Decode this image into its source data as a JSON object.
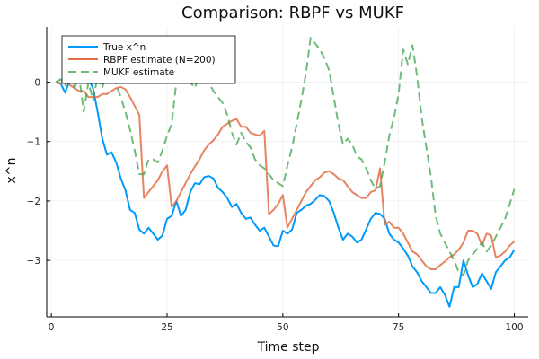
{
  "chart_data": {
    "type": "line",
    "title": "Comparison: RBPF vs MUKF",
    "xlabel": "Time step",
    "ylabel": "x^n",
    "xlim": [
      -1,
      103
    ],
    "ylim": [
      -3.95,
      0.93
    ],
    "xticks": [
      0,
      25,
      50,
      75,
      100
    ],
    "yticks": [
      0,
      -1,
      -2,
      -3
    ],
    "grid": true,
    "legend_position": "top-left",
    "x": [
      1,
      2,
      3,
      4,
      5,
      6,
      7,
      8,
      9,
      10,
      11,
      12,
      13,
      14,
      15,
      16,
      17,
      18,
      19,
      20,
      21,
      22,
      23,
      24,
      25,
      26,
      27,
      28,
      29,
      30,
      31,
      32,
      33,
      34,
      35,
      36,
      37,
      38,
      39,
      40,
      41,
      42,
      43,
      44,
      45,
      46,
      47,
      48,
      49,
      50,
      51,
      52,
      53,
      54,
      55,
      56,
      57,
      58,
      59,
      60,
      61,
      62,
      63,
      64,
      65,
      66,
      67,
      68,
      69,
      70,
      71,
      72,
      73,
      74,
      75,
      76,
      77,
      78,
      79,
      80,
      81,
      82,
      83,
      84,
      85,
      86,
      87,
      88,
      89,
      90,
      91,
      92,
      93,
      94,
      95,
      96,
      97,
      98,
      99,
      100
    ],
    "series": [
      {
        "name": "True x^n",
        "color": "#009AFA",
        "dash": "solid",
        "values": [
          0.0,
          -0.02,
          -0.18,
          0.05,
          0.12,
          0.02,
          0.1,
          0.05,
          -0.1,
          -0.5,
          -0.95,
          -1.22,
          -1.18,
          -1.35,
          -1.62,
          -1.82,
          -2.15,
          -2.2,
          -2.48,
          -2.55,
          -2.45,
          -2.55,
          -2.65,
          -2.58,
          -2.3,
          -2.25,
          -2.0,
          -2.25,
          -2.15,
          -1.85,
          -1.7,
          -1.72,
          -1.6,
          -1.58,
          -1.62,
          -1.78,
          -1.85,
          -1.95,
          -2.1,
          -2.05,
          -2.2,
          -2.3,
          -2.28,
          -2.4,
          -2.5,
          -2.45,
          -2.6,
          -2.75,
          -2.76,
          -2.5,
          -2.55,
          -2.48,
          -2.2,
          -2.15,
          -2.08,
          -2.05,
          -1.98,
          -1.9,
          -1.92,
          -2.0,
          -2.2,
          -2.45,
          -2.65,
          -2.55,
          -2.6,
          -2.7,
          -2.65,
          -2.48,
          -2.3,
          -2.2,
          -2.22,
          -2.3,
          -2.55,
          -2.65,
          -2.7,
          -2.8,
          -2.92,
          -3.1,
          -3.2,
          -3.35,
          -3.45,
          -3.55,
          -3.55,
          -3.45,
          -3.58,
          -3.78,
          -3.45,
          -3.45,
          -3.0,
          -3.25,
          -3.45,
          -3.4,
          -3.22,
          -3.35,
          -3.48,
          -3.2,
          -3.1,
          -3.0,
          -2.95,
          -2.82
        ]
      },
      {
        "name": "RBPF estimate (N=200)",
        "color": "#E26F46",
        "dash": "solid",
        "values": [
          0.0,
          -0.03,
          0.05,
          -0.05,
          -0.1,
          -0.15,
          -0.15,
          -0.25,
          -0.25,
          -0.25,
          -0.2,
          -0.2,
          -0.15,
          -0.1,
          -0.08,
          -0.12,
          -0.25,
          -0.4,
          -0.55,
          -1.95,
          -1.85,
          -1.75,
          -1.65,
          -1.5,
          -1.4,
          -2.1,
          -2.0,
          -1.85,
          -1.7,
          -1.55,
          -1.42,
          -1.3,
          -1.15,
          -1.05,
          -0.98,
          -0.88,
          -0.75,
          -0.7,
          -0.65,
          -0.62,
          -0.75,
          -0.75,
          -0.85,
          -0.88,
          -0.9,
          -0.82,
          -2.22,
          -2.15,
          -2.05,
          -1.9,
          -2.45,
          -2.3,
          -2.15,
          -2.0,
          -1.85,
          -1.75,
          -1.65,
          -1.6,
          -1.52,
          -1.5,
          -1.55,
          -1.62,
          -1.65,
          -1.75,
          -1.85,
          -1.9,
          -1.95,
          -1.95,
          -1.85,
          -1.82,
          -1.45,
          -2.4,
          -2.35,
          -2.45,
          -2.45,
          -2.55,
          -2.7,
          -2.85,
          -2.9,
          -3.0,
          -3.1,
          -3.15,
          -3.15,
          -3.08,
          -3.02,
          -2.95,
          -2.9,
          -2.82,
          -2.7,
          -2.5,
          -2.5,
          -2.55,
          -2.75,
          -2.55,
          -2.58,
          -2.95,
          -2.92,
          -2.85,
          -2.75,
          -2.68
        ]
      },
      {
        "name": "MUKF estimate",
        "color": "#3DA44D",
        "dash": "dashed",
        "values": [
          0.0,
          0.05,
          -0.05,
          0.15,
          -0.1,
          0.1,
          -0.5,
          0.0,
          -0.3,
          0.1,
          -0.1,
          0.2,
          0.3,
          -0.05,
          -0.25,
          -0.5,
          -0.8,
          -1.15,
          -1.55,
          -1.55,
          -1.3,
          -1.3,
          -1.35,
          -1.15,
          -0.9,
          -0.7,
          0.0,
          0.1,
          0.2,
          0.0,
          -0.1,
          0.15,
          0.2,
          0.0,
          -0.15,
          -0.25,
          -0.35,
          -0.55,
          -0.85,
          -1.05,
          -0.85,
          -1.0,
          -1.1,
          -1.3,
          -1.4,
          -1.45,
          -1.55,
          -1.65,
          -1.7,
          -1.75,
          -1.4,
          -1.1,
          -0.7,
          -0.3,
          0.15,
          0.75,
          0.65,
          0.55,
          0.4,
          0.2,
          -0.25,
          -0.7,
          -1.05,
          -0.95,
          -1.05,
          -1.25,
          -1.3,
          -1.45,
          -1.65,
          -1.8,
          -1.75,
          -1.35,
          -0.9,
          -0.6,
          -0.2,
          0.55,
          0.3,
          0.62,
          0.1,
          -0.6,
          -1.1,
          -1.6,
          -2.25,
          -2.55,
          -2.7,
          -2.85,
          -3.0,
          -3.2,
          -3.25,
          -3.0,
          -2.9,
          -2.8,
          -2.7,
          -2.85,
          -2.75,
          -2.6,
          -2.45,
          -2.3,
          -2.05,
          -1.8
        ]
      }
    ]
  }
}
